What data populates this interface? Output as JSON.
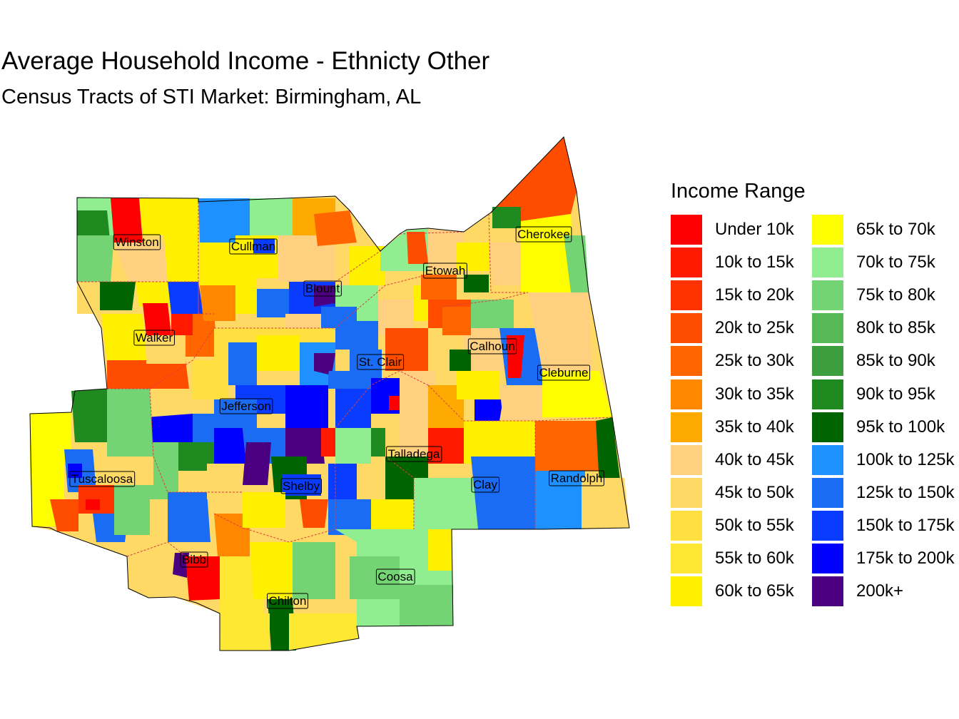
{
  "title": "Average Household Income - Ethnicty Other",
  "subtitle": "Census Tracts of STI Market: Birmingham, AL",
  "legend": {
    "title": "Income Range",
    "items": [
      {
        "label": "Under 10k",
        "color": "#ff0000"
      },
      {
        "label": "10k to 15k",
        "color": "#ff1a00"
      },
      {
        "label": "15k to 20k",
        "color": "#ff3300"
      },
      {
        "label": "20k to 25k",
        "color": "#ff4d00"
      },
      {
        "label": "25k to 30k",
        "color": "#ff6600"
      },
      {
        "label": "30k to 35k",
        "color": "#ff8800"
      },
      {
        "label": "35k to 40k",
        "color": "#ffaa00"
      },
      {
        "label": "40k to 45k",
        "color": "#ffd080"
      },
      {
        "label": "45k to 50k",
        "color": "#ffd966"
      },
      {
        "label": "50k to 55k",
        "color": "#ffe040"
      },
      {
        "label": "55k to 60k",
        "color": "#ffe833"
      },
      {
        "label": "60k to 65k",
        "color": "#fff000"
      },
      {
        "label": "65k to 70k",
        "color": "#ffff00"
      },
      {
        "label": "70k to 75k",
        "color": "#90ee90"
      },
      {
        "label": "75k to 80k",
        "color": "#74d474"
      },
      {
        "label": "80k to 85k",
        "color": "#56b956"
      },
      {
        "label": "85k to 90k",
        "color": "#3c9e3c"
      },
      {
        "label": "90k to 95k",
        "color": "#1f8a1f"
      },
      {
        "label": "95k to 100k",
        "color": "#006400"
      },
      {
        "label": "100k to 125k",
        "color": "#1e90ff"
      },
      {
        "label": "125k to 150k",
        "color": "#1a6cf5"
      },
      {
        "label": "150k to 175k",
        "color": "#0a3cff"
      },
      {
        "label": "175k to 200k",
        "color": "#0000ff"
      },
      {
        "label": "200k+",
        "color": "#4b0082"
      }
    ]
  },
  "counties": [
    {
      "name": "Winston"
    },
    {
      "name": "Cullman"
    },
    {
      "name": "Blount"
    },
    {
      "name": "Etowah"
    },
    {
      "name": "Cherokee"
    },
    {
      "name": "Walker"
    },
    {
      "name": "Calhoun"
    },
    {
      "name": "St. Clair"
    },
    {
      "name": "Cleburne"
    },
    {
      "name": "Jefferson"
    },
    {
      "name": "Talladega"
    },
    {
      "name": "Tuscaloosa"
    },
    {
      "name": "Shelby"
    },
    {
      "name": "Clay"
    },
    {
      "name": "Randolph"
    },
    {
      "name": "Bibb"
    },
    {
      "name": "Coosa"
    },
    {
      "name": "Chilton"
    }
  ]
}
